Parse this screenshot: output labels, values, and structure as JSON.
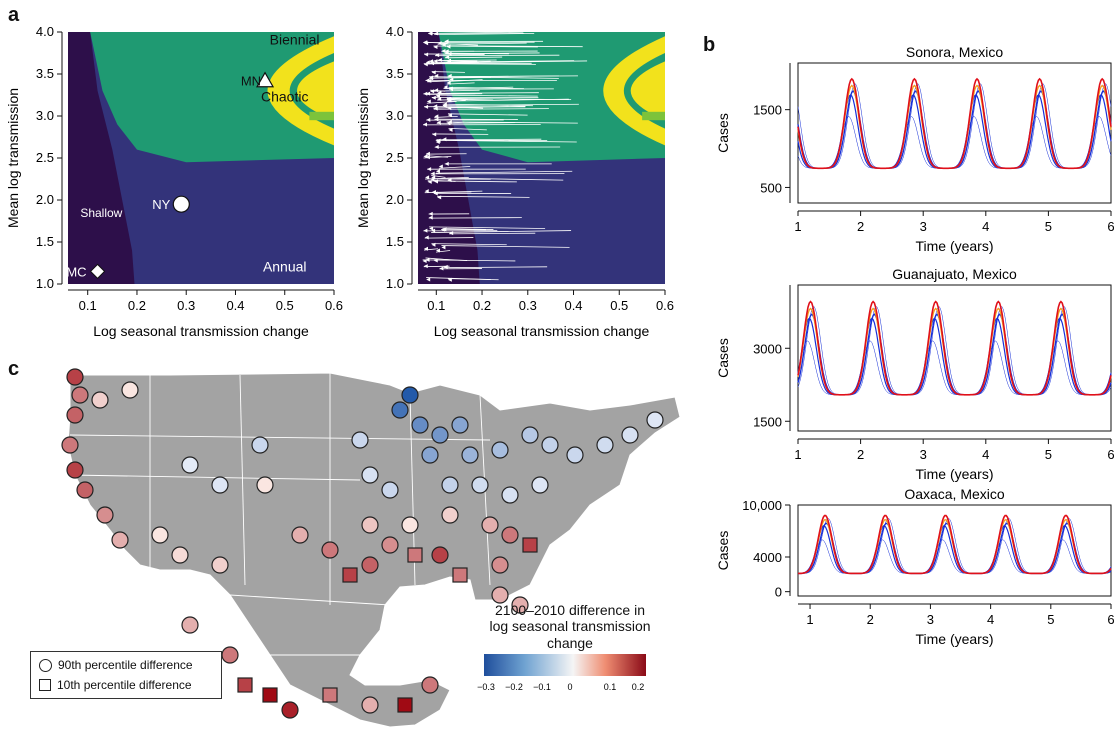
{
  "panel_labels": {
    "a": "a",
    "b": "b",
    "c": "c"
  },
  "colors": {
    "shallow": "#2d0f4a",
    "annual": "#33337a",
    "biennial": "#1f9a72",
    "chaotic": "#f2e21c",
    "chaotic_inner": "#7cc33b",
    "map_land": "#a3a3a3",
    "sim_blue": "#1730d8",
    "sim_orange": "#f59a1b",
    "sim_red": "#e0101a"
  },
  "chart_data": [
    {
      "type": "heatmap",
      "id": "a-left",
      "xlabel": "Log seasonal transmission change",
      "ylabel": "Mean log transmission",
      "xlim": [
        0.06,
        0.6
      ],
      "ylim": [
        1.0,
        4.0
      ],
      "xticks": [
        "0.1",
        "0.2",
        "0.3",
        "0.4",
        "0.5",
        "0.6"
      ],
      "yticks": [
        "1.0",
        "1.5",
        "2.0",
        "2.5",
        "3.0",
        "3.5",
        "4.0"
      ],
      "regions": [
        "Shallow",
        "Annual",
        "Biennial",
        "Chaotic"
      ],
      "points": [
        {
          "label": "MN",
          "x": 0.46,
          "y": 3.42,
          "marker": "triangle"
        },
        {
          "label": "NY",
          "x": 0.29,
          "y": 1.95,
          "marker": "circle"
        },
        {
          "label": "MC",
          "x": 0.12,
          "y": 1.15,
          "marker": "diamond"
        }
      ]
    },
    {
      "type": "heatmap",
      "id": "a-right",
      "xlabel": "Log seasonal transmission change",
      "ylabel": "Mean log transmission",
      "xlim": [
        0.06,
        0.6
      ],
      "ylim": [
        1.0,
        4.0
      ],
      "xticks": [
        "0.1",
        "0.2",
        "0.3",
        "0.4",
        "0.5",
        "0.6"
      ],
      "yticks": [
        "1.0",
        "1.5",
        "2.0",
        "2.5",
        "3.0",
        "3.5",
        "4.0"
      ]
    },
    {
      "type": "line",
      "id": "b-sonora",
      "title": "Sonora, Mexico",
      "xlabel": "Time (years)",
      "ylabel": "Cases",
      "xlim": [
        1,
        6
      ],
      "ylim": [
        300,
        2100
      ],
      "xticks": [
        "1",
        "2",
        "3",
        "4",
        "5",
        "6"
      ],
      "yticks": [
        "500",
        "1500"
      ],
      "period": 1,
      "peak_phase": 0.36
    },
    {
      "type": "line",
      "id": "b-guanajuato",
      "title": "Guanajuato, Mexico",
      "xlabel": "Time (years)",
      "ylabel": "Cases",
      "xlim": [
        1,
        6
      ],
      "ylim": [
        1300,
        4300
      ],
      "xticks": [
        "1",
        "2",
        "3",
        "4",
        "5",
        "6"
      ],
      "yticks": [
        "1500",
        "3000"
      ],
      "period": 1,
      "peak_phase": 0.7
    },
    {
      "type": "line",
      "id": "b-oaxaca",
      "title": "Oaxaca, Mexico",
      "xlabel": "Time (years)",
      "ylabel": "Cases",
      "xlim": [
        0.8,
        6
      ],
      "ylim": [
        -500,
        10000
      ],
      "xticks": [
        "1",
        "2",
        "3",
        "4",
        "5",
        "6"
      ],
      "yticks": [
        "0",
        "4000",
        "10,000"
      ],
      "period": 1,
      "peak_phase": 0.75
    }
  ],
  "map": {
    "colorbar_title": [
      "2100–2010 difference in",
      "log seasonal transmission",
      "change"
    ],
    "colorbar_ticks": [
      "−0.3",
      "−0.2",
      "−0.1",
      "0",
      "0.1",
      "0.2"
    ],
    "legend": {
      "circle": "90th percentile difference",
      "square": "10th percentile difference"
    }
  }
}
